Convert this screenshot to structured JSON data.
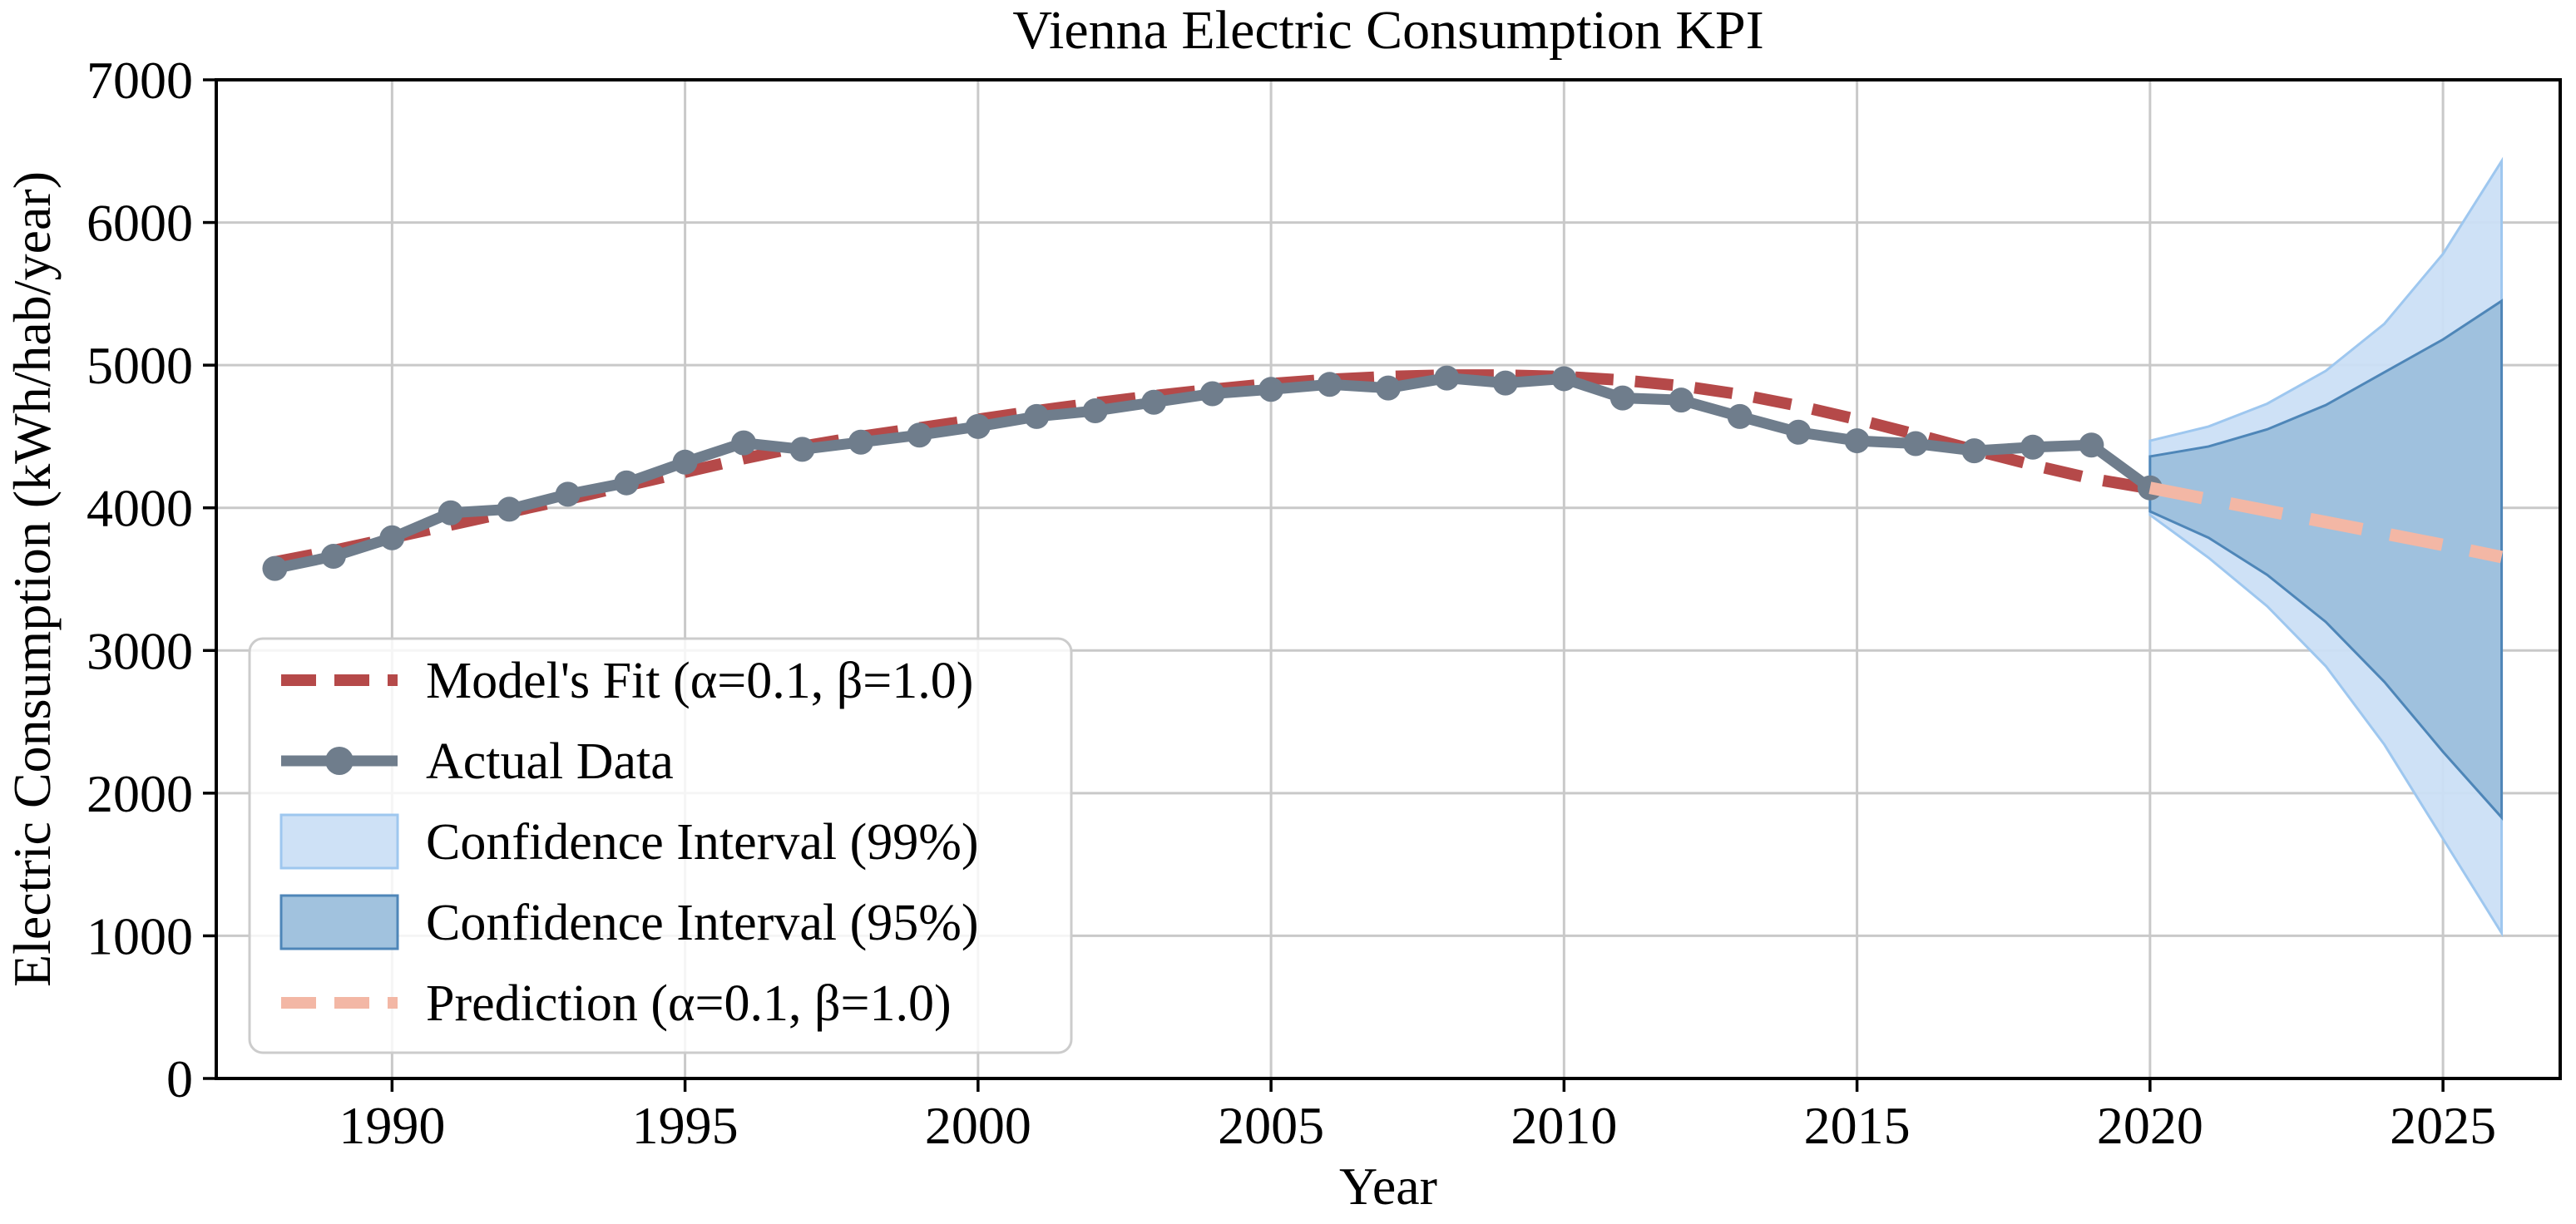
{
  "page": {
    "background": "#ffffff"
  },
  "chart_data": {
    "type": "line",
    "title": "Vienna Electric Consumption KPI",
    "xlabel": "Year",
    "ylabel": "Electric Consumption (kWh/hab/year)",
    "xlim": [
      1987,
      2027
    ],
    "ylim": [
      0,
      7000
    ],
    "x_ticks": [
      1990,
      1995,
      2000,
      2005,
      2010,
      2015,
      2020,
      2025
    ],
    "y_ticks": [
      0,
      1000,
      2000,
      3000,
      4000,
      5000,
      6000,
      7000
    ],
    "grid": true,
    "grid_color": "#c9c9c9",
    "legend_position": "lower left",
    "series": [
      {
        "name": "Model's Fit (α=0.1, β=1.0)",
        "kind": "line",
        "style": "dashed",
        "color": "#b54949",
        "width": 14,
        "swatch": "dashed-line",
        "x": [
          1988,
          1989,
          1990,
          1991,
          1992,
          1993,
          1994,
          1995,
          1996,
          1997,
          1998,
          1999,
          2000,
          2001,
          2002,
          2003,
          2004,
          2005,
          2006,
          2007,
          2008,
          2009,
          2010,
          2011,
          2012,
          2013,
          2014,
          2015,
          2016,
          2017,
          2018,
          2019,
          2020
        ],
        "values": [
          3620,
          3700,
          3790,
          3880,
          3970,
          4060,
          4155,
          4250,
          4345,
          4430,
          4500,
          4560,
          4620,
          4680,
          4735,
          4785,
          4830,
          4870,
          4900,
          4920,
          4930,
          4930,
          4920,
          4895,
          4855,
          4795,
          4715,
          4620,
          4515,
          4405,
          4300,
          4205,
          4135
        ]
      },
      {
        "name": "Actual Data",
        "kind": "line",
        "style": "solid-markers",
        "color": "#6f7d8c",
        "width": 13,
        "marker_radius": 15,
        "swatch": "line-marker",
        "x": [
          1988,
          1989,
          1990,
          1991,
          1992,
          1993,
          1994,
          1995,
          1996,
          1997,
          1998,
          1999,
          2000,
          2001,
          2002,
          2003,
          2004,
          2005,
          2006,
          2007,
          2008,
          2009,
          2010,
          2011,
          2012,
          2013,
          2014,
          2015,
          2016,
          2017,
          2018,
          2019,
          2020
        ],
        "values": [
          3575,
          3660,
          3790,
          3965,
          3990,
          4095,
          4175,
          4320,
          4455,
          4410,
          4460,
          4510,
          4570,
          4640,
          4680,
          4740,
          4800,
          4830,
          4865,
          4840,
          4910,
          4875,
          4905,
          4770,
          4755,
          4640,
          4530,
          4470,
          4450,
          4400,
          4425,
          4440,
          4140
        ]
      },
      {
        "name": "Confidence Interval (99%)",
        "kind": "band",
        "fill": "#cbdff5",
        "edge": "#9ec7ef",
        "edge_width": 3,
        "swatch": "band",
        "x": [
          2020,
          2021,
          2022,
          2023,
          2024,
          2025,
          2026
        ],
        "upper": [
          4470,
          4570,
          4730,
          4960,
          5290,
          5780,
          6430
        ],
        "lower": [
          3950,
          3650,
          3310,
          2890,
          2340,
          1680,
          1020
        ]
      },
      {
        "name": "Confidence Interval (95%)",
        "kind": "band",
        "fill": "#9cbfdc",
        "edge": "#4e86b8",
        "edge_width": 3,
        "swatch": "band",
        "x": [
          2020,
          2021,
          2022,
          2023,
          2024,
          2025,
          2026
        ],
        "upper": [
          4360,
          4430,
          4550,
          4720,
          4950,
          5180,
          5450
        ],
        "lower": [
          3975,
          3790,
          3530,
          3200,
          2780,
          2290,
          1830
        ]
      },
      {
        "name": "Prediction (α=0.1, β=1.0)",
        "kind": "line",
        "style": "dashed-long",
        "color": "#f3b7a5",
        "width": 15,
        "swatch": "dashed-line",
        "x": [
          2020,
          2021,
          2022,
          2023,
          2024,
          2025,
          2026
        ],
        "values": [
          4140,
          4060,
          3980,
          3900,
          3820,
          3740,
          3655
        ]
      }
    ]
  }
}
